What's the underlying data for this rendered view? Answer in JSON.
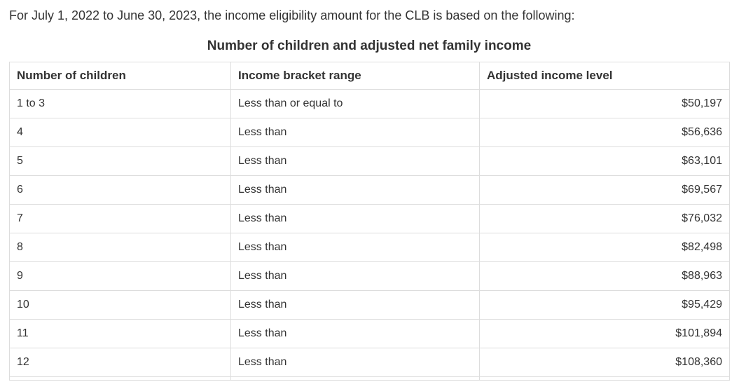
{
  "intro": "For July 1, 2022 to June 30, 2023, the income eligibility amount for the CLB is based on the following:",
  "table": {
    "caption": "Number of children and adjusted net family income",
    "columns": [
      "Number of children",
      "Income bracket range",
      "Adjusted income level"
    ],
    "rows": [
      {
        "children": "1 to 3",
        "bracket": "Less than or equal to",
        "income": "$50,197"
      },
      {
        "children": "4",
        "bracket": "Less than",
        "income": "$56,636"
      },
      {
        "children": "5",
        "bracket": "Less than",
        "income": "$63,101"
      },
      {
        "children": "6",
        "bracket": "Less than",
        "income": "$69,567"
      },
      {
        "children": "7",
        "bracket": "Less than",
        "income": "$76,032"
      },
      {
        "children": "8",
        "bracket": "Less than",
        "income": "$82,498"
      },
      {
        "children": "9",
        "bracket": "Less than",
        "income": "$88,963"
      },
      {
        "children": "10",
        "bracket": "Less than",
        "income": "$95,429"
      },
      {
        "children": "11",
        "bracket": "Less than",
        "income": "$101,894"
      },
      {
        "children": "12",
        "bracket": "Less than",
        "income": "$108,360"
      }
    ]
  },
  "colors": {
    "text": "#333333",
    "border": "#dddddd",
    "background": "#ffffff"
  }
}
